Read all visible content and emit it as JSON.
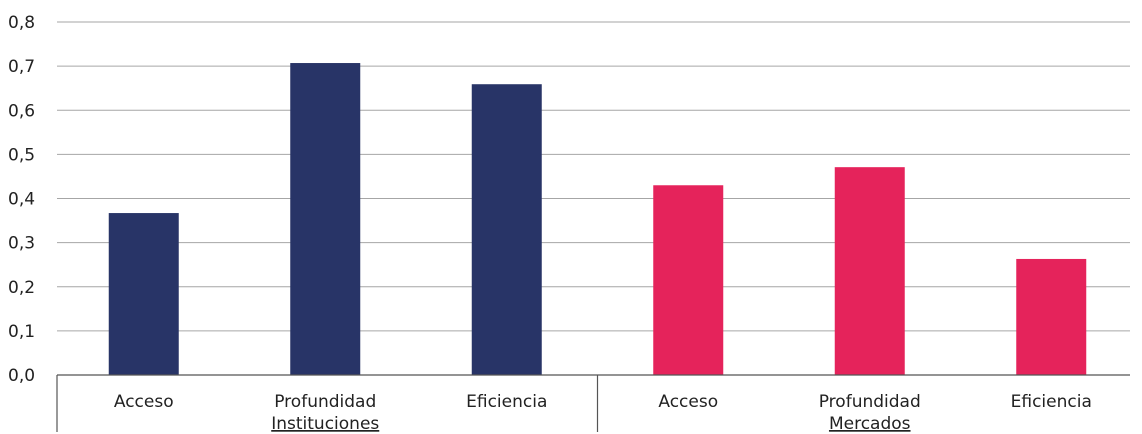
{
  "chart_data": {
    "type": "bar",
    "y_ticks": [
      "0,0",
      "0,1",
      "0,2",
      "0,3",
      "0,4",
      "0,5",
      "0,6",
      "0,7",
      "0,8"
    ],
    "ylim": [
      0,
      0.8
    ],
    "grid": true,
    "groups": [
      {
        "label": "Instituciones",
        "color": "#283467",
        "categories": [
          "Acceso",
          "Profundidad",
          "Eficiencia"
        ],
        "values": [
          0.367,
          0.707,
          0.659
        ]
      },
      {
        "label": "Mercados",
        "color": "#E5235B",
        "categories": [
          "Acceso",
          "Profundidad",
          "Eficiencia"
        ],
        "values": [
          0.43,
          0.471,
          0.263
        ]
      }
    ]
  }
}
